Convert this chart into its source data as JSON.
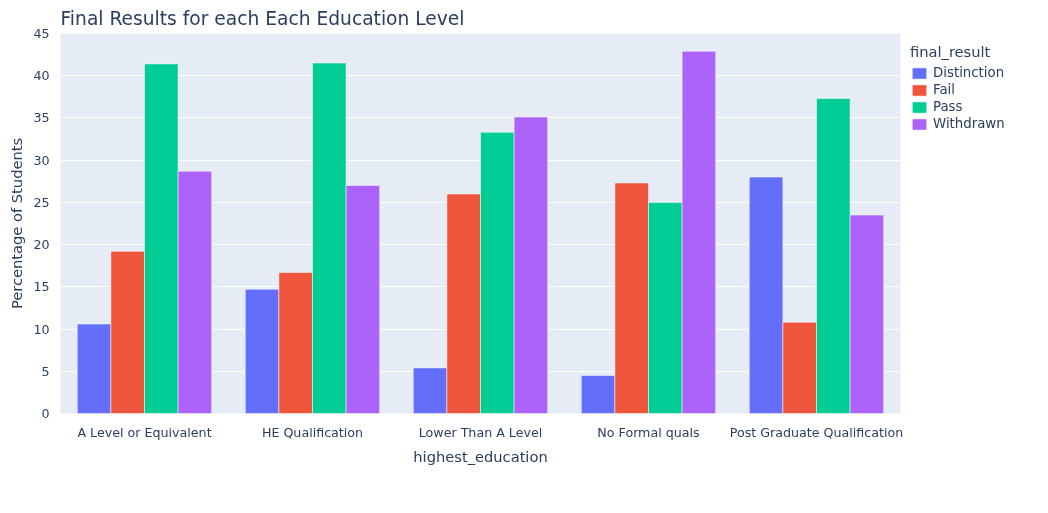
{
  "chart_data": {
    "type": "bar",
    "title": "Final Results for each Each Education Level",
    "xlabel": "highest_education",
    "ylabel": "Percentage of Students",
    "legend_title": "final_result",
    "categories": [
      "A Level or Equivalent",
      "HE Qualification",
      "Lower Than A Level",
      "No Formal quals",
      "Post Graduate Qualification"
    ],
    "series": [
      {
        "name": "Distinction",
        "color": "#636efa",
        "values": [
          10.6,
          14.7,
          5.4,
          4.5,
          28.0
        ]
      },
      {
        "name": "Fail",
        "color": "#ef553b",
        "values": [
          19.2,
          16.7,
          26.0,
          27.3,
          10.8
        ]
      },
      {
        "name": "Pass",
        "color": "#00cc96",
        "values": [
          41.4,
          41.5,
          33.3,
          25.0,
          37.3
        ]
      },
      {
        "name": "Withdrawn",
        "color": "#ab63fa",
        "values": [
          28.7,
          27.0,
          35.1,
          42.9,
          23.5
        ]
      }
    ],
    "ylim": [
      0,
      45
    ],
    "yticks": [
      0,
      5,
      10,
      15,
      20,
      25,
      30,
      35,
      40,
      45
    ],
    "grid": "y",
    "legend": "top right"
  }
}
